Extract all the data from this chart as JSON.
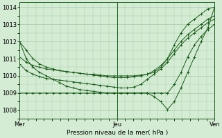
{
  "title": "Pression niveau de la mer( hPa )",
  "bg_color": "#d4ecd4",
  "grid_color": "#a8c8a8",
  "line_color": "#1a5c1a",
  "xlim": [
    0,
    48
  ],
  "ylim": [
    1007.5,
    1014.3
  ],
  "yticks": [
    1008,
    1009,
    1010,
    1011,
    1012,
    1013,
    1014
  ],
  "xtick_labels": [
    "Mer",
    "Jeu",
    "Ven"
  ],
  "xtick_positions": [
    0,
    24,
    48
  ],
  "series": [
    [
      1012.0,
      1011.5,
      1011.0,
      1010.7,
      1010.5,
      1010.4,
      1010.3,
      1010.25,
      1010.2,
      1010.15,
      1010.1,
      1010.1,
      1010.05,
      1010.0,
      1010.0,
      1010.0,
      1010.0,
      1010.0,
      1010.05,
      1010.1,
      1010.2,
      1010.5,
      1011.0,
      1011.8,
      1012.5,
      1013.0,
      1013.3,
      1013.6,
      1013.9,
      1014.0
    ],
    [
      1011.1,
      1010.8,
      1010.6,
      1010.5,
      1010.4,
      1010.35,
      1010.3,
      1010.25,
      1010.2,
      1010.15,
      1010.1,
      1010.05,
      1010.0,
      1009.95,
      1009.9,
      1009.9,
      1009.9,
      1009.95,
      1010.0,
      1010.1,
      1010.3,
      1010.6,
      1011.0,
      1011.5,
      1012.0,
      1012.4,
      1012.7,
      1013.0,
      1013.3,
      1013.5
    ],
    [
      1010.7,
      1010.3,
      1010.1,
      1009.95,
      1009.85,
      1009.8,
      1009.75,
      1009.7,
      1009.65,
      1009.6,
      1009.55,
      1009.5,
      1009.45,
      1009.4,
      1009.35,
      1009.3,
      1009.3,
      1009.35,
      1009.5,
      1009.8,
      1010.1,
      1010.4,
      1010.8,
      1011.3,
      1011.8,
      1012.2,
      1012.5,
      1012.8,
      1013.1,
      1013.3
    ],
    [
      1009.0,
      1009.0,
      1009.0,
      1009.0,
      1009.0,
      1009.0,
      1009.0,
      1009.0,
      1009.0,
      1009.0,
      1009.0,
      1009.0,
      1009.0,
      1009.0,
      1009.0,
      1009.0,
      1009.0,
      1009.0,
      1009.0,
      1009.0,
      1009.0,
      1009.0,
      1009.0,
      1009.5,
      1010.2,
      1011.1,
      1011.8,
      1012.3,
      1012.7,
      1013.0
    ],
    [
      1012.0,
      1011.0,
      1010.5,
      1010.2,
      1010.0,
      1009.8,
      1009.6,
      1009.4,
      1009.3,
      1009.2,
      1009.15,
      1009.1,
      1009.05,
      1009.0,
      1009.0,
      1009.0,
      1009.0,
      1009.0,
      1009.0,
      1009.0,
      1008.8,
      1008.5,
      1008.05,
      1008.5,
      1009.3,
      1010.2,
      1011.1,
      1012.0,
      1012.8,
      1014.0
    ]
  ]
}
